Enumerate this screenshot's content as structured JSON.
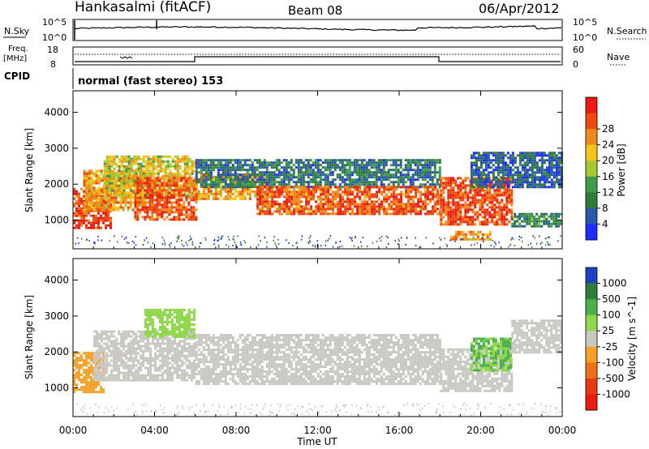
{
  "header": {
    "station": "Hankasalmi (fitACF)",
    "beam": "Beam 08",
    "date": "06/Apr/2012"
  },
  "noise_panel": {
    "left_label": "N.Sky",
    "right_label": "N.Search",
    "left_top_tick": "10^5",
    "left_bottom_tick": "10^0",
    "right_top_tick": "10^5",
    "right_bottom_tick": "10^0"
  },
  "freq_panel": {
    "left_label_1": "Freq.",
    "left_label_2": "[MHz]",
    "left_top_tick": "18",
    "left_bottom_tick": "8",
    "right_label": "Nave",
    "right_top_tick": "60",
    "right_bottom_tick": "0"
  },
  "cpid": {
    "label": "CPID",
    "text": "normal (fast stereo) 153"
  },
  "chart_data": [
    {
      "type": "heatmap",
      "name": "power",
      "ylabel": "Slant Range [km]",
      "yticks": [
        "1000",
        "2000",
        "3000",
        "4000"
      ],
      "ylim": [
        200,
        4600
      ],
      "colorbar_label": "Power [dB]",
      "colorbar_ticks": [
        "4",
        "8",
        "12",
        "16",
        "20",
        "24",
        "28"
      ],
      "colorbar_colors": [
        "#1c2cff",
        "#2a58a8",
        "#2f7a3c",
        "#3f9b4a",
        "#a8c830",
        "#f4c418",
        "#f08a1a",
        "#ee4a10",
        "#e81c10"
      ],
      "colorbar_range": [
        0,
        32
      ],
      "bands": [
        {
          "x_start": 0.0,
          "x_end": 1.8,
          "range_low": 800,
          "range_high": 1900,
          "power": 28
        },
        {
          "x_start": 0.5,
          "x_end": 3.5,
          "range_low": 1300,
          "range_high": 2400,
          "power": 22
        },
        {
          "x_start": 1.5,
          "x_end": 6.0,
          "range_low": 1700,
          "range_high": 2800,
          "power": 18
        },
        {
          "x_start": 3.0,
          "x_end": 6.0,
          "range_low": 1000,
          "range_high": 2200,
          "power": 26
        },
        {
          "x_start": 6.0,
          "x_end": 9.5,
          "range_low": 1600,
          "range_high": 2300,
          "power": 22
        },
        {
          "x_start": 6.0,
          "x_end": 18.0,
          "range_low": 1900,
          "range_high": 2700,
          "power": 8
        },
        {
          "x_start": 9.0,
          "x_end": 18.0,
          "range_low": 1150,
          "range_high": 1950,
          "power": 26
        },
        {
          "x_start": 18.0,
          "x_end": 21.5,
          "range_low": 900,
          "range_high": 2200,
          "power": 27
        },
        {
          "x_start": 18.5,
          "x_end": 20.5,
          "range_low": 450,
          "range_high": 700,
          "power": 22
        },
        {
          "x_start": 19.5,
          "x_end": 24.0,
          "range_low": 1900,
          "range_high": 2900,
          "power": 6
        },
        {
          "x_start": 21.5,
          "x_end": 24.0,
          "range_low": 800,
          "range_high": 1200,
          "power": 10
        }
      ]
    },
    {
      "type": "heatmap",
      "name": "velocity",
      "ylabel": "Slant Range [km]",
      "yticks": [
        "1000",
        "2000",
        "3000",
        "4000"
      ],
      "ylim": [
        200,
        4600
      ],
      "colorbar_label": "Velocity [m s^-1]",
      "colorbar_ticks": [
        "1000",
        "500",
        "100",
        "25",
        "-25",
        "-100",
        "-500",
        "-1000"
      ],
      "colorbar_colors": [
        "#2040c0",
        "#2e7d3a",
        "#4caf50",
        "#8ed84a",
        "#c8c8c0",
        "#f6a02a",
        "#f07018",
        "#e83a12",
        "#e81c10"
      ],
      "colorbar_range": [
        -1200,
        1200
      ],
      "bands": [
        {
          "x_start": 0.0,
          "x_end": 1.5,
          "range_low": 900,
          "range_high": 2000,
          "velocity": -300
        },
        {
          "x_start": 1.0,
          "x_end": 6.0,
          "range_low": 1200,
          "range_high": 2600,
          "velocity": 0
        },
        {
          "x_start": 3.5,
          "x_end": 6.0,
          "range_low": 2400,
          "range_high": 3200,
          "velocity": 300
        },
        {
          "x_start": 6.0,
          "x_end": 18.0,
          "range_low": 1100,
          "range_high": 2500,
          "velocity": 0
        },
        {
          "x_start": 18.0,
          "x_end": 21.5,
          "range_low": 900,
          "range_high": 2100,
          "velocity": 10
        },
        {
          "x_start": 19.5,
          "x_end": 21.5,
          "range_low": 1500,
          "range_high": 2400,
          "velocity": 400
        },
        {
          "x_start": 21.5,
          "x_end": 24.0,
          "range_low": 2000,
          "range_high": 2900,
          "velocity": 0
        }
      ]
    }
  ],
  "time_axis": {
    "xlabel": "Time UT",
    "xlim": [
      0,
      24
    ],
    "ticks": [
      "00:00",
      "04:00",
      "08:00",
      "12:00",
      "16:00",
      "20:00",
      "00:00"
    ]
  }
}
